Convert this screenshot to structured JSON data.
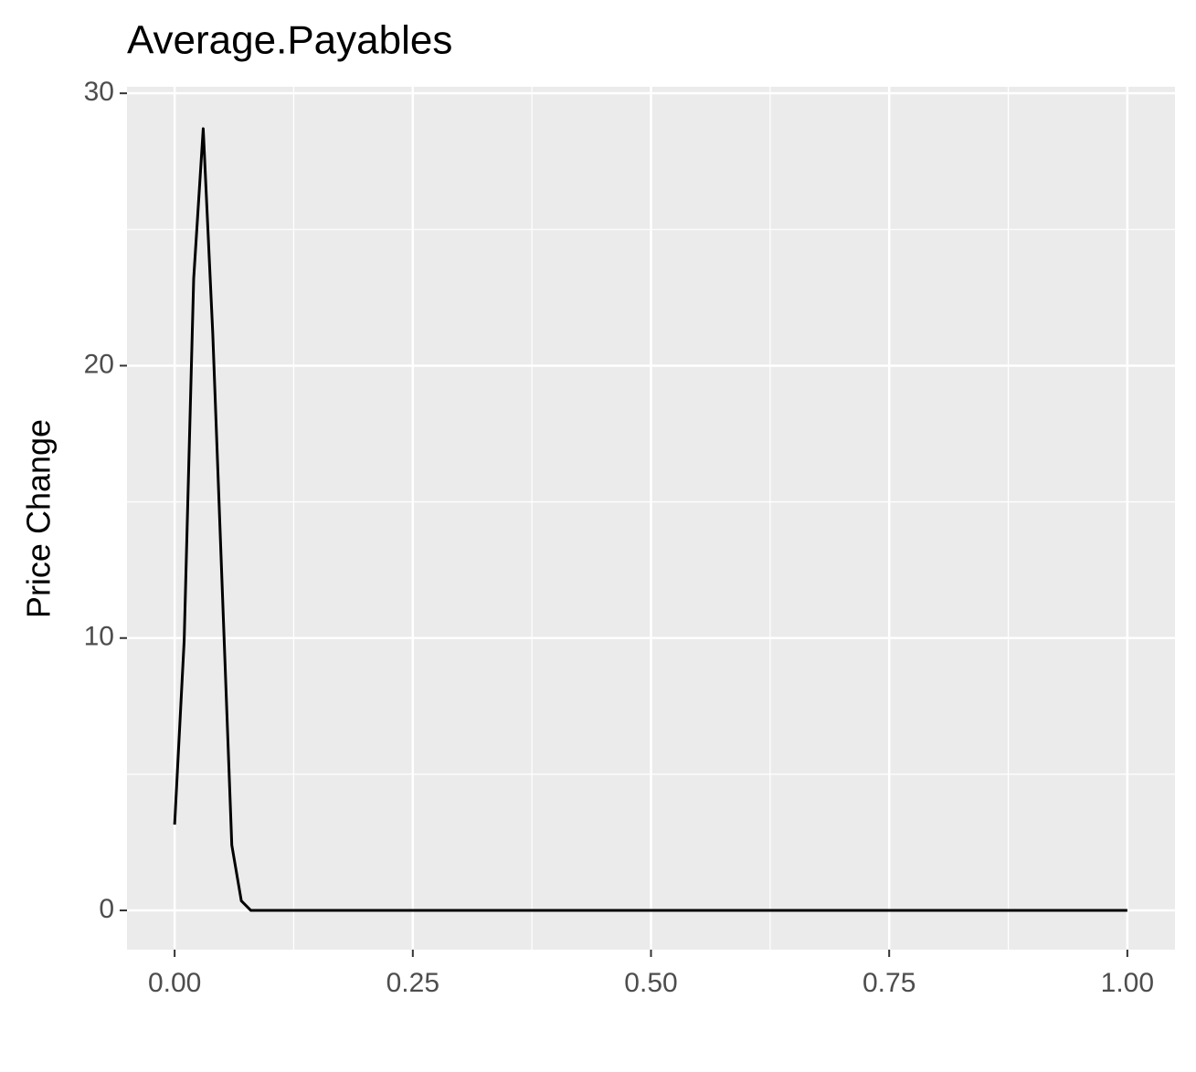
{
  "chart_data": {
    "type": "line",
    "title": "Average.Payables",
    "y_label": "Price Change",
    "x": [
      0,
      0.01,
      0.02,
      0.03,
      0.04,
      0.05,
      0.06,
      0.07,
      0.08,
      1.0
    ],
    "series": [
      {
        "color": "#000000",
        "values": [
          3.15,
          9.9,
          23.2,
          28.7,
          21.2,
          11.8,
          2.4,
          0.35,
          0,
          0
        ]
      }
    ],
    "xlim": [
      -0.05,
      1.05
    ],
    "xticks": [
      {
        "value": 0,
        "label": "0.00"
      },
      {
        "value": 0.25,
        "label": "0.25"
      },
      {
        "value": 0.5,
        "label": "0.50"
      },
      {
        "value": 0.75,
        "label": "0.75"
      },
      {
        "value": 1,
        "label": "1.00"
      }
    ],
    "x_minor_grid": [
      0.125,
      0.375,
      0.625,
      0.875
    ],
    "ylim": [
      -1.44,
      30.24
    ],
    "yticks": [
      0,
      10,
      20,
      30
    ],
    "y_minor_grid": [
      5,
      15,
      25
    ],
    "grid": true
  }
}
